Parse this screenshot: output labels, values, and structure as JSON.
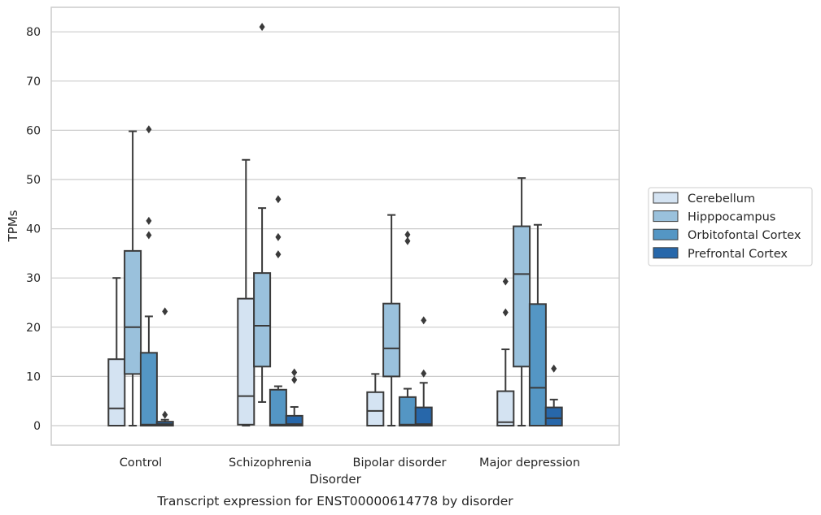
{
  "chart_data": {
    "type": "boxplot",
    "title": "",
    "caption": "Transcript expression for ENST00000614778 by disorder",
    "xlabel": "Disorder",
    "ylabel": "TPMs",
    "ylim": [
      -4,
      85
    ],
    "yticks": [
      0,
      10,
      20,
      30,
      40,
      50,
      60,
      70,
      80
    ],
    "grid": "horizontal",
    "legend_position": "right",
    "categories": [
      "Control",
      "Schizophrenia",
      "Bipolar disorder",
      "Major depression"
    ],
    "series": [
      {
        "name": "Cerebellum",
        "color": "#d4e3f2",
        "boxes": [
          {
            "whisker_low": 0,
            "q1": 0,
            "median": 3.5,
            "q3": 13.5,
            "whisker_high": 30,
            "outliers": []
          },
          {
            "whisker_low": 0,
            "q1": 0.2,
            "median": 6,
            "q3": 25.8,
            "whisker_high": 54,
            "outliers": []
          },
          {
            "whisker_low": 0,
            "q1": 0,
            "median": 3,
            "q3": 6.8,
            "whisker_high": 10.5,
            "outliers": []
          },
          {
            "whisker_low": 0,
            "q1": 0,
            "median": 0.7,
            "q3": 7,
            "whisker_high": 15.5,
            "outliers": [
              23,
              29.3
            ]
          }
        ]
      },
      {
        "name": "Hipppocampus",
        "color": "#9ac1dc",
        "boxes": [
          {
            "whisker_low": 0,
            "q1": 10.5,
            "median": 20,
            "q3": 35.5,
            "whisker_high": 59.8,
            "outliers": []
          },
          {
            "whisker_low": 4.8,
            "q1": 12,
            "median": 20.3,
            "q3": 31,
            "whisker_high": 44.2,
            "outliers": [
              81
            ]
          },
          {
            "whisker_low": 0,
            "q1": 10,
            "median": 15.7,
            "q3": 24.8,
            "whisker_high": 42.8,
            "outliers": []
          },
          {
            "whisker_low": 0,
            "q1": 12,
            "median": 30.8,
            "q3": 40.5,
            "whisker_high": 50.3,
            "outliers": []
          }
        ]
      },
      {
        "name": "Orbitofontal Cortex",
        "color": "#5496c4",
        "boxes": [
          {
            "whisker_low": 0,
            "q1": 0,
            "median": 0.2,
            "q3": 14.8,
            "whisker_high": 22.2,
            "outliers": [
              38.7,
              41.6,
              60.2
            ]
          },
          {
            "whisker_low": 0,
            "q1": 0,
            "median": 0.2,
            "q3": 7.3,
            "whisker_high": 8,
            "outliers": [
              34.8,
              38.3,
              46
            ]
          },
          {
            "whisker_low": 0,
            "q1": 0,
            "median": 0.2,
            "q3": 5.8,
            "whisker_high": 7.5,
            "outliers": [
              37.5,
              38.8
            ]
          },
          {
            "whisker_low": 0,
            "q1": 0,
            "median": 7.7,
            "q3": 24.7,
            "whisker_high": 40.8,
            "outliers": []
          }
        ]
      },
      {
        "name": "Prefrontal Cortex",
        "color": "#2767aa",
        "boxes": [
          {
            "whisker_low": 0,
            "q1": 0,
            "median": 0.3,
            "q3": 0.8,
            "whisker_high": 1.2,
            "outliers": [
              2.2,
              23.2
            ]
          },
          {
            "whisker_low": 0,
            "q1": 0,
            "median": 0.3,
            "q3": 2,
            "whisker_high": 3.8,
            "outliers": [
              9.3,
              10.8
            ]
          },
          {
            "whisker_low": 0,
            "q1": 0,
            "median": 0.3,
            "q3": 3.7,
            "whisker_high": 8.7,
            "outliers": [
              10.6,
              21.4
            ]
          },
          {
            "whisker_low": 0,
            "q1": 0,
            "median": 1.5,
            "q3": 3.7,
            "whisker_high": 5.3,
            "outliers": [
              11.6
            ]
          }
        ]
      }
    ]
  }
}
